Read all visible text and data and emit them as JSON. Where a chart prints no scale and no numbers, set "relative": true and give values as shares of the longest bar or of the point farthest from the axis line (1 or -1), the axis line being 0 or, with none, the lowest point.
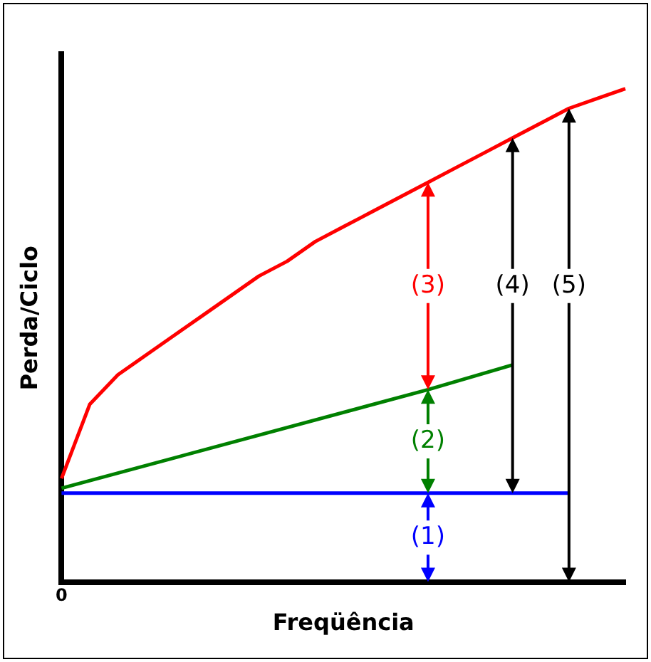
{
  "chart_data": {
    "type": "line",
    "relative": true,
    "xlabel": "Freqüência",
    "ylabel": "Perda/Ciclo",
    "marker": "none",
    "categories": [
      null,
      null,
      null,
      null,
      null,
      null,
      null,
      null,
      null,
      null,
      null,
      null,
      null,
      null,
      null,
      null,
      null,
      null,
      null,
      null,
      null
    ],
    "series": [
      {
        "color": "#0000ff",
        "values": [
          0.18,
          null,
          null,
          null,
          null,
          null,
          null,
          null,
          null,
          null,
          null,
          null,
          null,
          0.18,
          null,
          null,
          0.18,
          null,
          0.18,
          null,
          null
        ]
      },
      {
        "color": "#008000",
        "values": [
          0.19,
          null,
          null,
          null,
          null,
          null,
          null,
          null,
          null,
          null,
          null,
          null,
          null,
          0.39,
          null,
          null,
          0.44,
          null,
          null,
          null,
          null
        ]
      },
      {
        "color": "#ff0000",
        "values": [
          0.21,
          0.36,
          0.42,
          0.46,
          0.5,
          0.54,
          0.58,
          0.62,
          0.65,
          0.69,
          0.72,
          0.75,
          0.78,
          0.81,
          0.84,
          0.87,
          0.9,
          0.93,
          0.96,
          0.98,
          1
        ]
      }
    ],
    "annotations": [
      "(1)",
      "(2)",
      "(3)",
      "(4)",
      "(5)",
      "0"
    ]
  }
}
